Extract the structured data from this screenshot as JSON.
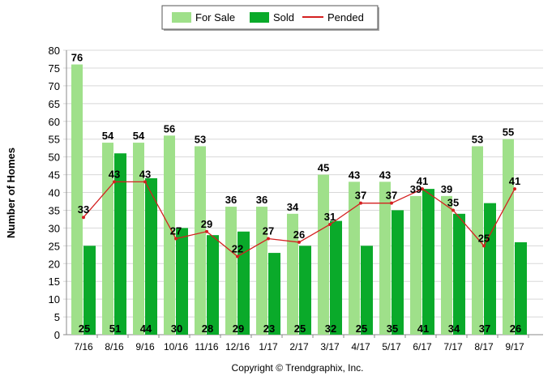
{
  "chart_data": {
    "type": "bar",
    "title": "",
    "xlabel": "",
    "ylabel": "Number of Homes",
    "ylim": [
      0,
      80
    ],
    "yticks": [
      0,
      5,
      10,
      15,
      20,
      25,
      30,
      35,
      40,
      45,
      50,
      55,
      60,
      65,
      70,
      75,
      80
    ],
    "grid": true,
    "legend_position": "top-center",
    "categories": [
      "7/16",
      "8/16",
      "9/16",
      "10/16",
      "11/16",
      "12/16",
      "1/17",
      "2/17",
      "3/17",
      "4/17",
      "5/17",
      "6/17",
      "7/17",
      "8/17",
      "9/17"
    ],
    "series": [
      {
        "name": "For Sale",
        "type": "bar",
        "color": "#9fe08a",
        "values": [
          76,
          54,
          54,
          56,
          53,
          36,
          36,
          34,
          45,
          43,
          43,
          39,
          39,
          53,
          55
        ]
      },
      {
        "name": "Sold",
        "type": "bar",
        "color": "#0aaa2a",
        "values": [
          25,
          51,
          44,
          30,
          28,
          29,
          23,
          25,
          32,
          25,
          35,
          41,
          34,
          37,
          26
        ]
      },
      {
        "name": "Pended",
        "type": "line",
        "color": "#d42020",
        "values": [
          33,
          43,
          43,
          27,
          29,
          22,
          27,
          26,
          31,
          37,
          37,
          41,
          35,
          25,
          41
        ]
      }
    ],
    "footer": "Copyright © Trendgraphix, Inc."
  }
}
